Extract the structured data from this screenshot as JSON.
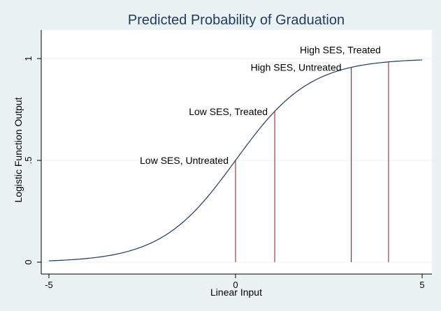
{
  "chart_data": {
    "type": "line",
    "title": "Predicted Probability of Graduation",
    "xlabel": "Linear Input",
    "ylabel": "Logistic Function Output",
    "xlim": [
      -5,
      5
    ],
    "ylim": [
      0,
      1
    ],
    "x_ticks": [
      "-5",
      "0",
      "5"
    ],
    "y_ticks": [
      "0",
      ".5",
      "1"
    ],
    "x_tick_values": [
      -5,
      0,
      5
    ],
    "y_tick_values": [
      0,
      0.5,
      1
    ],
    "grid": true,
    "curve": {
      "function": "logistic",
      "x_from": -5,
      "x_to": 5,
      "color": "#1e3a5f"
    },
    "markers": [
      {
        "label": "Low SES, Untreated",
        "x": 0,
        "y": 0.5
      },
      {
        "label": "Low SES, Treated",
        "x": 1.05,
        "y": 0.74
      },
      {
        "label": "High SES, Untreated",
        "x": 3.1,
        "y": 0.957
      },
      {
        "label": "High SES, Treated",
        "x": 4.1,
        "y": 0.984
      }
    ],
    "marker_color": "#8b1a1a",
    "background_color": "#eaf2f3",
    "plot_background_color": "#ffffff"
  }
}
